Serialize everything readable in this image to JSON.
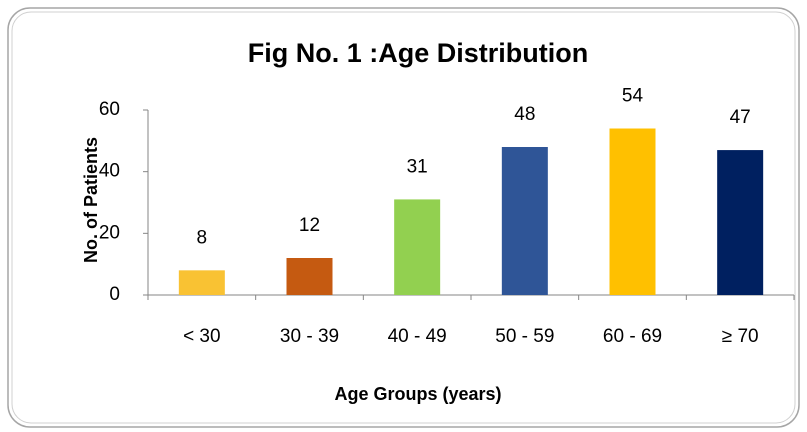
{
  "chart_data": {
    "type": "bar",
    "title": "Fig No. 1 :Age Distribution",
    "x_label": "Age Groups (years)",
    "y_label": "No. of Patients",
    "categories": [
      "< 30",
      "30 - 39",
      "40 - 49",
      "50 - 59",
      "60 - 69",
      "≥ 70"
    ],
    "values": [
      8,
      12,
      31,
      48,
      54,
      47
    ],
    "colors": [
      "#f9c233",
      "#c55a11",
      "#92d050",
      "#2f5597",
      "#ffc000",
      "#002060"
    ],
    "ylim": [
      0,
      60
    ],
    "yticks": [
      0,
      20,
      40,
      60
    ],
    "grid": false
  }
}
